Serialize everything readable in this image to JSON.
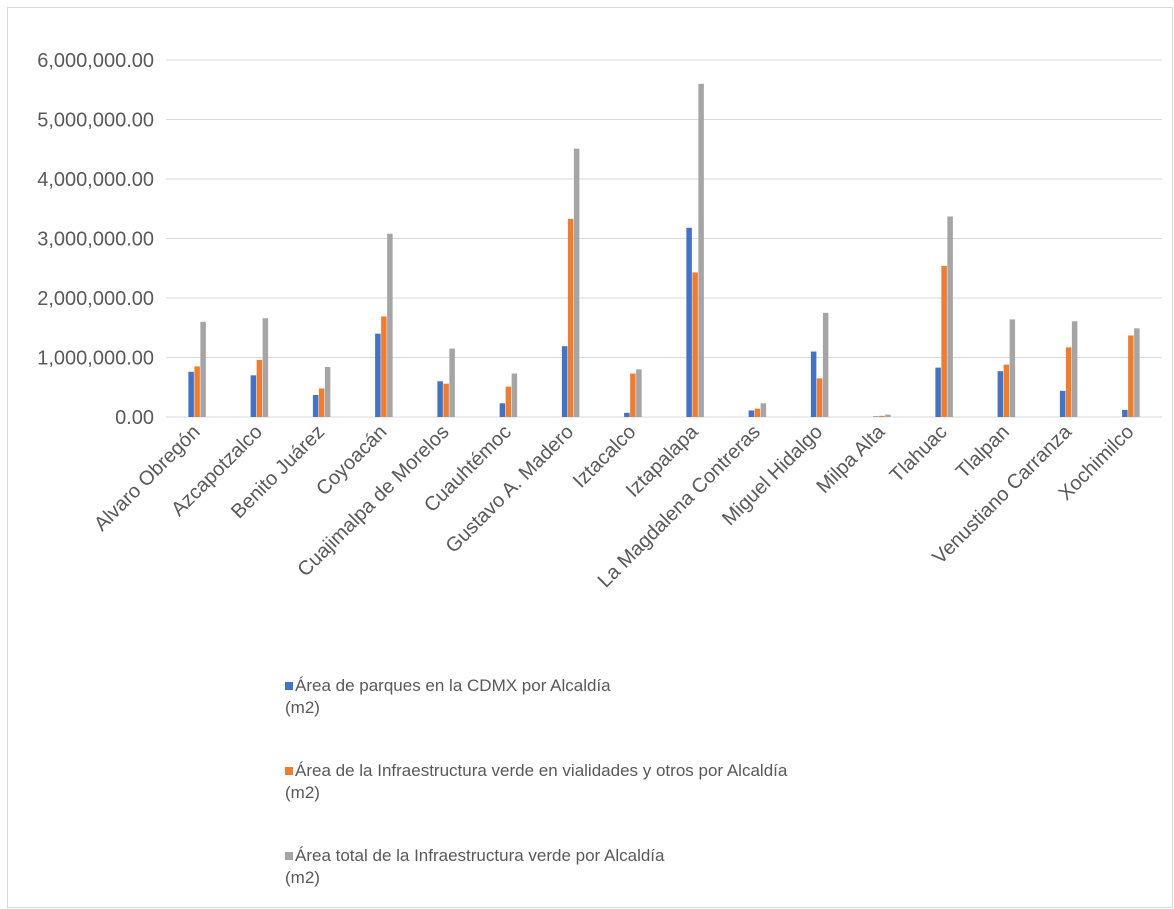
{
  "chart_data": {
    "type": "bar",
    "categories": [
      "Alvaro Obregón",
      "Azcapotzalco",
      "Benito Juárez",
      "Coyoacán",
      "Cuajimalpa de Morelos",
      "Cuauhtémoc",
      "Gustavo A. Madero",
      "Iztacalco",
      "Iztapalapa",
      "La Magdalena Contreras",
      "Miguel Hidalgo",
      "Milpa Alta",
      "Tlahuac",
      "Tlalpan",
      "Venustiano Carranza",
      "Xochimilco"
    ],
    "series": [
      {
        "name": "Área de parques en la CDMX por Alcaldía (m2)",
        "name_line1": "Área de parques en la CDMX por Alcaldía",
        "name_line2": "(m2)",
        "color": "#4472c4",
        "values": [
          760000,
          700000,
          370000,
          1400000,
          600000,
          230000,
          1190000,
          70000,
          3180000,
          110000,
          1100000,
          10000,
          830000,
          770000,
          440000,
          120000
        ]
      },
      {
        "name": "Área de la Infraestructura verde en vialidades y otros por Alcaldía (m2)",
        "name_line1": "Área de la Infraestructura verde en vialidades y otros por Alcaldía",
        "name_line2": "(m2)",
        "color": "#ed7d31",
        "values": [
          850000,
          960000,
          480000,
          1690000,
          560000,
          510000,
          3330000,
          730000,
          2430000,
          140000,
          650000,
          20000,
          2540000,
          880000,
          1170000,
          1370000
        ]
      },
      {
        "name": "Área total de la Infraestructura verde por Alcaldía (m2)",
        "name_line1": "Área total de la Infraestructura verde por Alcaldía",
        "name_line2": "(m2)",
        "color": "#a5a5a5",
        "values": [
          1600000,
          1660000,
          840000,
          3080000,
          1150000,
          730000,
          4510000,
          800000,
          5600000,
          230000,
          1750000,
          40000,
          3370000,
          1640000,
          1610000,
          1490000
        ]
      }
    ],
    "y_ticks": [
      "0.00",
      "1,000,000.00",
      "2,000,000.00",
      "3,000,000.00",
      "4,000,000.00",
      "5,000,000.00",
      "6,000,000.00"
    ],
    "ylim": [
      0,
      6000000
    ],
    "grid": "horizontal",
    "legend_position": "bottom",
    "title": "",
    "xlabel": "",
    "ylabel": ""
  }
}
